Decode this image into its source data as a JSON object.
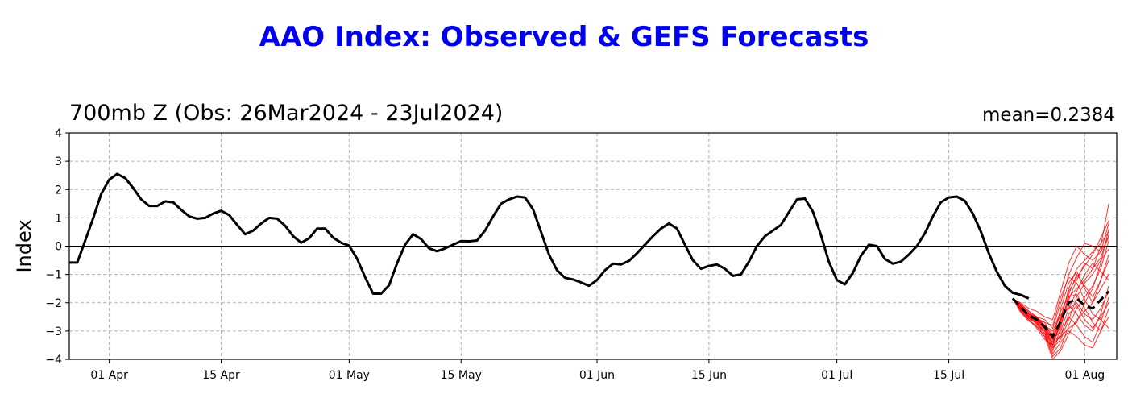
{
  "chart_data": {
    "type": "line",
    "title": "AAO Index: Observed & GEFS Forecasts",
    "subtitle": "700mb Z (Obs: 26Mar2024 - 23Jul2024)",
    "annotation": "mean=0.2384",
    "ylabel": "Index",
    "xlabel": "",
    "ylim": [
      -4,
      4
    ],
    "yticks": [
      -4,
      -3,
      -2,
      -1,
      0,
      1,
      2,
      3,
      4
    ],
    "xlim": [
      "2024-03-27",
      "2024-08-05"
    ],
    "xticks": [
      {
        "date": "2024-04-01",
        "label": "01 Apr"
      },
      {
        "date": "2024-04-15",
        "label": "15 Apr"
      },
      {
        "date": "2024-05-01",
        "label": "01 May"
      },
      {
        "date": "2024-05-15",
        "label": "15 May"
      },
      {
        "date": "2024-06-01",
        "label": "01 Jun"
      },
      {
        "date": "2024-06-15",
        "label": "15 Jun"
      },
      {
        "date": "2024-07-01",
        "label": "01 Jul"
      },
      {
        "date": "2024-07-15",
        "label": "15 Jul"
      },
      {
        "date": "2024-08-01",
        "label": "01 Aug"
      }
    ],
    "grid": true,
    "colors": {
      "observed": "#000000",
      "members": "#ff0000",
      "mean": "#000000",
      "title": "#0000ee"
    },
    "observed": {
      "start_date": "2024-03-27",
      "values": [
        -0.58,
        -0.58,
        0.2,
        1.0,
        1.85,
        2.35,
        2.55,
        2.4,
        2.05,
        1.65,
        1.42,
        1.42,
        1.58,
        1.55,
        1.28,
        1.05,
        0.97,
        1.0,
        1.15,
        1.25,
        1.1,
        0.75,
        0.42,
        0.55,
        0.8,
        1.0,
        0.97,
        0.72,
        0.35,
        0.12,
        0.28,
        0.62,
        0.62,
        0.3,
        0.12,
        0.02,
        -0.45,
        -1.1,
        -1.68,
        -1.68,
        -1.38,
        -0.6,
        0.05,
        0.42,
        0.25,
        -0.08,
        -0.18,
        -0.08,
        0.05,
        0.18,
        0.17,
        0.2,
        0.55,
        1.05,
        1.5,
        1.65,
        1.75,
        1.72,
        1.3,
        0.5,
        -0.3,
        -0.85,
        -1.12,
        -1.18,
        -1.28,
        -1.4,
        -1.2,
        -0.85,
        -0.62,
        -0.65,
        -0.52,
        -0.25,
        0.05,
        0.35,
        0.62,
        0.8,
        0.62,
        0.05,
        -0.5,
        -0.8,
        -0.7,
        -0.65,
        -0.8,
        -1.05,
        -1.0,
        -0.55,
        0.0,
        0.35,
        0.55,
        0.75,
        1.2,
        1.65,
        1.68,
        1.22,
        0.4,
        -0.55,
        -1.2,
        -1.35,
        -0.95,
        -0.35,
        0.05,
        0.0,
        -0.45,
        -0.62,
        -0.55,
        -0.3,
        0.0,
        0.45,
        1.05,
        1.55,
        1.72,
        1.75,
        1.6,
        1.15,
        0.52,
        -0.25,
        -0.9,
        -1.4,
        -1.65,
        -1.72,
        -1.85
      ]
    },
    "forecast_mean": {
      "start_date": "2024-07-23",
      "values": [
        -1.85,
        -2.15,
        -2.45,
        -2.6,
        -2.85,
        -3.2,
        -2.65,
        -2.0,
        -1.85,
        -2.1,
        -2.2,
        -1.9,
        -1.6
      ]
    },
    "forecast_members": [
      [
        -1.85,
        -2.05,
        -2.3,
        -2.5,
        -2.9,
        -3.5,
        -3.2,
        -2.4,
        -2.1,
        -2.6,
        -2.9,
        -2.5,
        -2.0
      ],
      [
        -1.85,
        -2.2,
        -2.5,
        -2.7,
        -3.1,
        -3.9,
        -3.6,
        -2.8,
        -2.2,
        -1.8,
        -1.4,
        -0.8,
        0.2
      ],
      [
        -1.85,
        -2.1,
        -2.4,
        -2.5,
        -2.6,
        -2.9,
        -2.0,
        -1.0,
        -0.4,
        0.1,
        0.0,
        -0.2,
        0.3
      ],
      [
        -1.85,
        -2.3,
        -2.6,
        -2.9,
        -3.3,
        -3.5,
        -2.6,
        -1.5,
        -0.8,
        -0.5,
        -0.2,
        0.1,
        0.5
      ],
      [
        -1.85,
        -2.0,
        -2.2,
        -2.3,
        -2.5,
        -2.6,
        -1.6,
        -0.6,
        0.0,
        -0.3,
        -0.5,
        -0.2,
        0.8
      ],
      [
        -1.85,
        -2.25,
        -2.55,
        -2.75,
        -3.0,
        -3.8,
        -3.4,
        -3.0,
        -3.2,
        -3.5,
        -3.6,
        -3.0,
        -2.5
      ],
      [
        -1.85,
        -2.15,
        -2.45,
        -2.65,
        -2.8,
        -3.0,
        -2.3,
        -1.8,
        -1.5,
        -1.2,
        -0.8,
        0.0,
        1.5
      ],
      [
        -1.85,
        -2.05,
        -2.35,
        -2.55,
        -2.7,
        -3.3,
        -3.0,
        -2.2,
        -1.6,
        -1.0,
        -0.6,
        -0.9,
        -1.2
      ],
      [
        -1.85,
        -2.35,
        -2.65,
        -2.8,
        -3.2,
        -3.6,
        -3.1,
        -2.5,
        -2.8,
        -3.2,
        -3.4,
        -2.7,
        -1.8
      ],
      [
        -1.85,
        -2.1,
        -2.4,
        -2.6,
        -2.9,
        -3.4,
        -2.8,
        -1.9,
        -1.2,
        -0.6,
        -0.8,
        -0.4,
        0.4
      ],
      [
        -1.85,
        -2.2,
        -2.5,
        -2.7,
        -3.1,
        -3.7,
        -2.9,
        -1.7,
        -1.0,
        -1.4,
        -1.8,
        -1.2,
        -0.5
      ],
      [
        -1.85,
        -2.15,
        -2.4,
        -2.55,
        -2.8,
        -3.1,
        -2.4,
        -2.2,
        -2.0,
        -2.4,
        -2.6,
        -2.2,
        -1.6
      ],
      [
        -1.85,
        -2.25,
        -2.55,
        -2.7,
        -2.9,
        -3.3,
        -2.2,
        -1.3,
        -0.9,
        -1.5,
        -2.0,
        -1.5,
        -1.0
      ],
      [
        -1.85,
        -2.1,
        -2.45,
        -2.65,
        -3.0,
        -3.6,
        -3.3,
        -2.6,
        -1.8,
        -1.3,
        -1.0,
        -0.5,
        -0.1
      ],
      [
        -1.85,
        -2.2,
        -2.5,
        -2.6,
        -2.7,
        -2.8,
        -1.8,
        -1.1,
        -1.3,
        -1.9,
        -2.4,
        -2.6,
        -2.9
      ],
      [
        -1.85,
        -2.3,
        -2.6,
        -2.85,
        -3.2,
        -4.0,
        -3.7,
        -3.1,
        -2.6,
        -2.3,
        -2.0,
        -1.2,
        -0.3
      ],
      [
        -1.85,
        -2.05,
        -2.3,
        -2.5,
        -2.8,
        -3.2,
        -2.6,
        -2.1,
        -2.4,
        -2.8,
        -3.0,
        -2.4,
        -1.4
      ],
      [
        -1.85,
        -2.15,
        -2.5,
        -2.75,
        -3.1,
        -3.4,
        -2.5,
        -1.6,
        -1.1,
        -0.7,
        -0.3,
        0.3,
        0.9
      ],
      [
        -1.85,
        -2.2,
        -2.45,
        -2.6,
        -2.85,
        -3.3,
        -3.2,
        -2.9,
        -2.7,
        -2.0,
        -1.5,
        -0.6,
        0.6
      ],
      [
        -1.85,
        -2.1,
        -2.4,
        -2.6,
        -2.95,
        -3.5,
        -2.7,
        -1.8,
        -1.7,
        -2.2,
        -2.7,
        -3.0,
        -2.2
      ]
    ]
  }
}
